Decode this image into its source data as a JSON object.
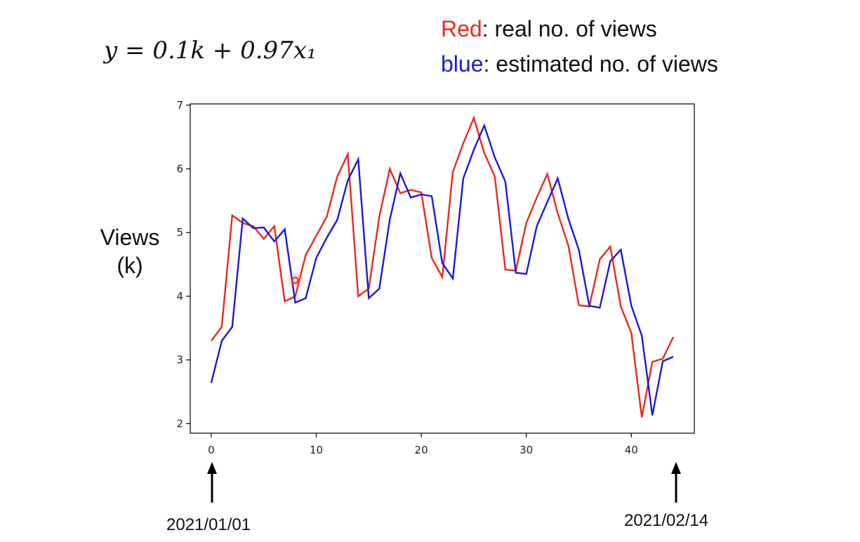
{
  "formula": "y = 0.1k + 0.97x₁",
  "legend": {
    "red": {
      "word": "Red",
      "rest": ": real no. of views",
      "color": "#e8291c"
    },
    "blue": {
      "word": "blue",
      "rest": ":  estimated no. of views",
      "color": "#1a1ad6"
    }
  },
  "ylabel": {
    "line1": "Views",
    "line2": "(k)"
  },
  "dates": {
    "start": "2021/01/01",
    "end": "2021/02/14"
  },
  "chart_data": {
    "type": "line",
    "x": [
      0,
      1,
      2,
      3,
      4,
      5,
      6,
      7,
      8,
      9,
      10,
      11,
      12,
      13,
      14,
      15,
      16,
      17,
      18,
      19,
      20,
      21,
      22,
      23,
      24,
      25,
      26,
      27,
      28,
      29,
      30,
      31,
      32,
      33,
      34,
      35,
      36,
      37,
      38,
      39,
      40,
      41,
      42,
      43,
      44
    ],
    "series": [
      {
        "name": "real no. of views",
        "color": "#e8291c",
        "values": [
          3.3,
          3.52,
          5.27,
          5.15,
          5.1,
          4.9,
          5.1,
          3.92,
          4.0,
          4.65,
          4.95,
          5.25,
          5.88,
          6.23,
          4.0,
          4.12,
          5.25,
          6.0,
          5.62,
          5.67,
          5.63,
          4.6,
          4.3,
          5.95,
          6.4,
          6.8,
          6.25,
          5.88,
          4.42,
          4.4,
          5.15,
          5.55,
          5.92,
          5.3,
          4.8,
          3.86,
          3.84,
          4.58,
          4.78,
          3.84,
          3.42,
          2.1,
          2.97,
          3.02,
          3.36
        ]
      },
      {
        "name": "estimated no. of views",
        "color": "#1a1ad6",
        "values": [
          2.64,
          3.3,
          3.52,
          5.22,
          5.07,
          5.08,
          4.86,
          5.05,
          3.9,
          3.97,
          4.6,
          4.92,
          5.2,
          5.82,
          6.15,
          3.97,
          4.12,
          5.2,
          5.93,
          5.55,
          5.6,
          5.57,
          4.52,
          4.28,
          5.85,
          6.3,
          6.68,
          6.18,
          5.8,
          4.37,
          4.35,
          5.1,
          5.48,
          5.85,
          5.22,
          4.73,
          3.85,
          3.82,
          4.55,
          4.73,
          3.85,
          3.38,
          2.13,
          2.98,
          3.05
        ]
      }
    ],
    "highlight_point": {
      "x": 8,
      "y": 4.25
    },
    "xticks": [
      0,
      10,
      20,
      30,
      40
    ],
    "yticks": [
      2,
      3,
      4,
      5,
      6,
      7
    ],
    "xlim": [
      -2,
      46
    ],
    "ylim": [
      1.85,
      7.02
    ],
    "grid": false,
    "ylabel": "Views (k)"
  }
}
